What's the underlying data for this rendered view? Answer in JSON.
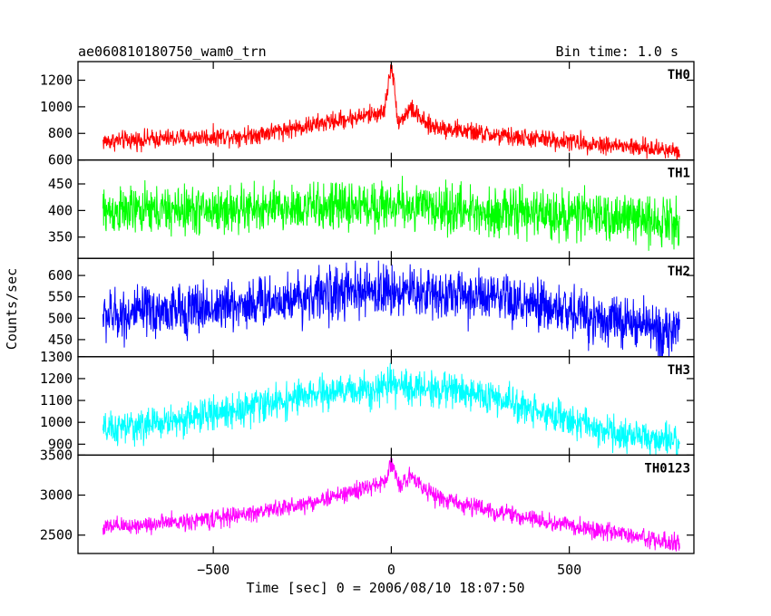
{
  "chart_data": {
    "type": "line",
    "title": "ae060810180750_wam0_trn",
    "bin_time_label": "Bin time: 1.0 s",
    "xlabel": "Time [sec] 0 = 2006/08/10 18:07:50",
    "ylabel": "Counts/sec",
    "xlim": [
      -880,
      850
    ],
    "x_ticks": [
      -500,
      0,
      500
    ],
    "x_tick_labels": [
      "−500",
      "0",
      "500"
    ],
    "x_data_range": [
      -810,
      810
    ],
    "grid": false,
    "panels": [
      {
        "name": "TH0",
        "color": "#ff0000",
        "ylim": [
          600,
          1340
        ],
        "y_ticks": [
          600,
          800,
          1000,
          1200
        ],
        "y_tick_labels": [
          "600",
          "800",
          "1000",
          "1200"
        ],
        "profile": [
          {
            "x": -810,
            "y": 740
          },
          {
            "x": -600,
            "y": 765
          },
          {
            "x": -400,
            "y": 785
          },
          {
            "x": -250,
            "y": 850
          },
          {
            "x": -100,
            "y": 920
          },
          {
            "x": -20,
            "y": 960
          },
          {
            "x": 0,
            "y": 1330
          },
          {
            "x": 20,
            "y": 880
          },
          {
            "x": 55,
            "y": 990
          },
          {
            "x": 100,
            "y": 860
          },
          {
            "x": 300,
            "y": 780
          },
          {
            "x": 500,
            "y": 740
          },
          {
            "x": 700,
            "y": 690
          },
          {
            "x": 810,
            "y": 670
          }
        ],
        "noise": 35
      },
      {
        "name": "TH1",
        "color": "#00ff00",
        "ylim": [
          310,
          495
        ],
        "y_ticks": [
          350,
          400,
          450
        ],
        "y_tick_labels": [
          "350",
          "400",
          "450"
        ],
        "profile": [
          {
            "x": -810,
            "y": 398
          },
          {
            "x": -400,
            "y": 402
          },
          {
            "x": -100,
            "y": 408
          },
          {
            "x": 0,
            "y": 410
          },
          {
            "x": 200,
            "y": 400
          },
          {
            "x": 500,
            "y": 392
          },
          {
            "x": 810,
            "y": 380
          }
        ],
        "noise": 22
      },
      {
        "name": "TH2",
        "color": "#0000ff",
        "ylim": [
          410,
          640
        ],
        "y_ticks": [
          450,
          500,
          550,
          600
        ],
        "y_tick_labels": [
          "450",
          "500",
          "550",
          "600"
        ],
        "profile": [
          {
            "x": -810,
            "y": 505
          },
          {
            "x": -500,
            "y": 525
          },
          {
            "x": -200,
            "y": 555
          },
          {
            "x": 0,
            "y": 565
          },
          {
            "x": 200,
            "y": 555
          },
          {
            "x": 500,
            "y": 515
          },
          {
            "x": 810,
            "y": 465
          }
        ],
        "noise": 30
      },
      {
        "name": "TH3",
        "color": "#00ffff",
        "ylim": [
          850,
          1300
        ],
        "y_ticks": [
          900,
          1000,
          1100,
          1200,
          1300
        ],
        "y_tick_labels": [
          "900",
          "1000",
          "1100",
          "1200",
          "1300"
        ],
        "profile": [
          {
            "x": -810,
            "y": 960
          },
          {
            "x": -600,
            "y": 1010
          },
          {
            "x": -400,
            "y": 1070
          },
          {
            "x": -200,
            "y": 1130
          },
          {
            "x": 0,
            "y": 1165
          },
          {
            "x": 200,
            "y": 1145
          },
          {
            "x": 400,
            "y": 1060
          },
          {
            "x": 600,
            "y": 960
          },
          {
            "x": 810,
            "y": 900
          }
        ],
        "noise": 38
      },
      {
        "name": "TH0123",
        "color": "#ff00ff",
        "ylim": [
          2270,
          3500
        ],
        "y_ticks": [
          2500,
          3000,
          3500
        ],
        "y_tick_labels": [
          "2500",
          "3000",
          "3500"
        ],
        "profile": [
          {
            "x": -810,
            "y": 2590
          },
          {
            "x": -500,
            "y": 2700
          },
          {
            "x": -250,
            "y": 2880
          },
          {
            "x": -100,
            "y": 3050
          },
          {
            "x": -20,
            "y": 3150
          },
          {
            "x": 0,
            "y": 3420
          },
          {
            "x": 25,
            "y": 3090
          },
          {
            "x": 55,
            "y": 3260
          },
          {
            "x": 120,
            "y": 2980
          },
          {
            "x": 300,
            "y": 2780
          },
          {
            "x": 500,
            "y": 2620
          },
          {
            "x": 700,
            "y": 2470
          },
          {
            "x": 810,
            "y": 2390
          }
        ],
        "noise": 55
      }
    ]
  }
}
